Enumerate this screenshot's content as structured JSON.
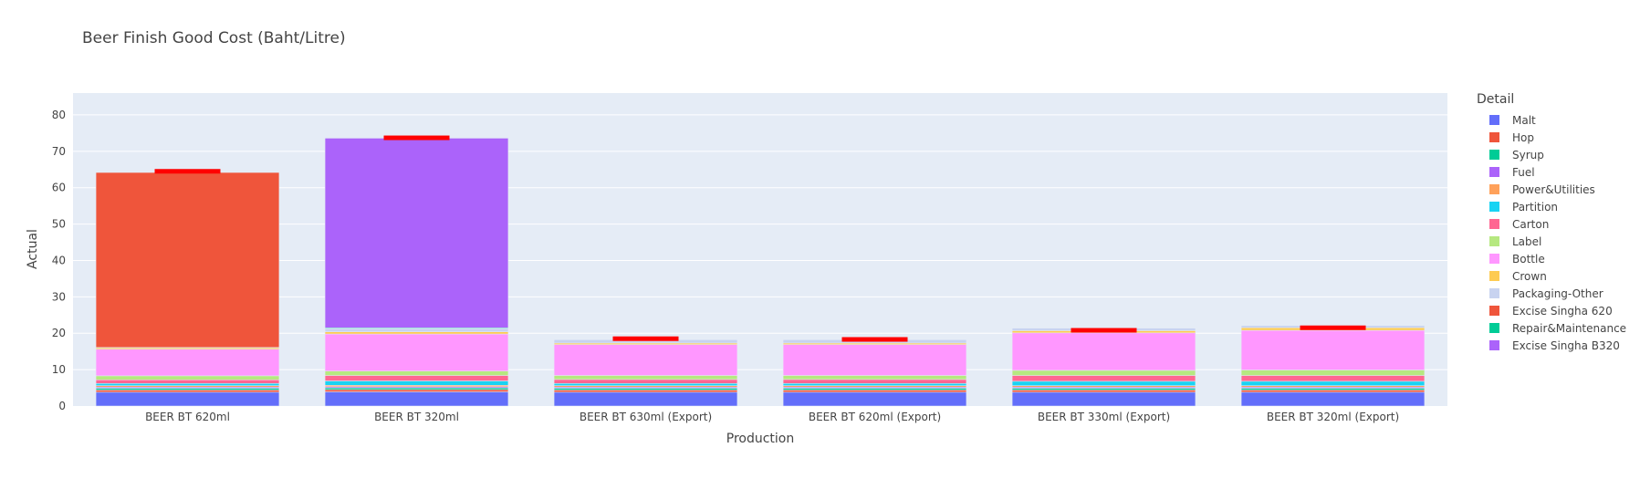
{
  "chart_data": {
    "type": "bar",
    "title": "Beer Finish Good Cost (Baht/Litre)",
    "xlabel": "Production",
    "ylabel": "Actual",
    "ylim": [
      0,
      86
    ],
    "yticks": [
      0,
      10,
      20,
      30,
      40,
      50,
      60,
      70,
      80
    ],
    "grid": true,
    "legend_title": "Detail",
    "legend_position": "right",
    "barmode": "stack",
    "categories": [
      "BEER BT 620ml",
      "BEER BT 320ml",
      "BEER BT 630ml (Export)",
      "BEER BT 620ml (Export)",
      "BEER BT 330ml (Export)",
      "BEER BT 320ml (Export)"
    ],
    "series": [
      {
        "name": "Malt",
        "color": "#636efa",
        "values": [
          3.8,
          3.9,
          3.8,
          3.8,
          3.8,
          3.8
        ]
      },
      {
        "name": "Hop",
        "color": "#ef553b",
        "values": [
          0.6,
          0.6,
          0.6,
          0.6,
          0.6,
          0.6
        ]
      },
      {
        "name": "Syrup",
        "color": "#00cc96",
        "values": [
          0.5,
          0.5,
          0.5,
          0.5,
          0.5,
          0.5
        ]
      },
      {
        "name": "Fuel",
        "color": "#ab63fa",
        "values": [
          0.3,
          0.3,
          0.3,
          0.3,
          0.3,
          0.3
        ]
      },
      {
        "name": "Power&Utilities",
        "color": "#ffa15a",
        "values": [
          0.4,
          0.4,
          0.4,
          0.4,
          0.4,
          0.4
        ]
      },
      {
        "name": "Partition",
        "color": "#19d3f3",
        "values": [
          0.6,
          1.2,
          0.6,
          0.6,
          1.2,
          1.2
        ]
      },
      {
        "name": "Carton",
        "color": "#ff6692",
        "values": [
          1.0,
          1.5,
          1.1,
          1.1,
          1.6,
          1.6
        ]
      },
      {
        "name": "Label",
        "color": "#b6e880",
        "values": [
          1.1,
          1.2,
          1.1,
          1.1,
          1.4,
          1.5
        ]
      },
      {
        "name": "Bottle",
        "color": "#ff97ff",
        "values": [
          7.3,
          10.2,
          8.5,
          8.5,
          10.3,
          10.9
        ]
      },
      {
        "name": "Crown",
        "color": "#fecb52",
        "values": [
          0.4,
          0.6,
          0.4,
          0.4,
          0.6,
          0.7
        ]
      },
      {
        "name": "Packaging-Other",
        "color": "#c8d3f0",
        "values": [
          0.1,
          0.9,
          0.9,
          0.9,
          0.7,
          0.6
        ]
      },
      {
        "name": "Excise Singha 620",
        "color": "#ef553b",
        "values": [
          48.1,
          0,
          0,
          0,
          0,
          0
        ]
      },
      {
        "name": "Repair&Maintenance",
        "color": "#00cc96",
        "values": [
          0.1,
          0.2,
          0,
          0,
          0,
          0
        ]
      },
      {
        "name": "Excise Singha B320",
        "color": "#ab63fa",
        "values": [
          0,
          52.1,
          0,
          0,
          0,
          0
        ]
      }
    ],
    "target_markers": {
      "color": "#ff0000",
      "values": [
        64.5,
        73.7,
        18.5,
        18.3,
        20.8,
        21.5
      ]
    }
  }
}
